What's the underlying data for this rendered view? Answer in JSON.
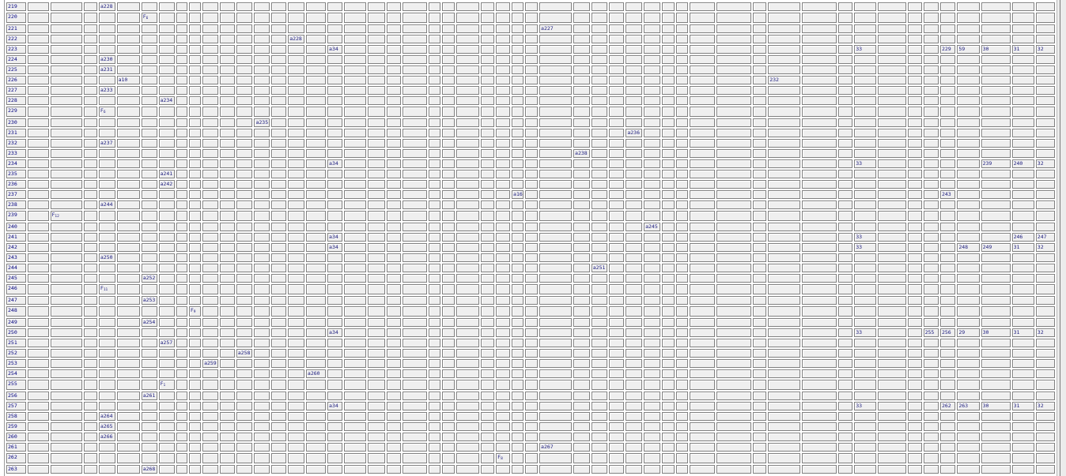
{
  "grid": {
    "columns": 49,
    "rows": [
      {
        "label": "219",
        "cells": {
          "4": "a228"
        }
      },
      {
        "label": "220",
        "cells": {
          "6": {
            "f": "6"
          }
        }
      },
      {
        "label": "221",
        "cells": {
          "29": "a227"
        }
      },
      {
        "label": "222",
        "cells": {
          "15": "a228"
        }
      },
      {
        "label": "223",
        "cells": {
          "17": "a34",
          "43": "33",
          "47": "229",
          "48": "59",
          "49": "30",
          "50": "31",
          "51": "32"
        }
      },
      {
        "label": "224",
        "cells": {
          "4": "a230"
        }
      },
      {
        "label": "225",
        "cells": {
          "4": "a231"
        }
      },
      {
        "label": "226",
        "cells": {
          "5": "a10",
          "40": "232"
        }
      },
      {
        "label": "227",
        "cells": {
          "4": "a233"
        }
      },
      {
        "label": "228",
        "cells": {
          "7": "a234"
        }
      },
      {
        "label": "229",
        "cells": {
          "4": {
            "f": "6"
          }
        }
      },
      {
        "label": "230",
        "cells": {
          "13": "a235"
        }
      },
      {
        "label": "231",
        "cells": {
          "33": "a236"
        }
      },
      {
        "label": "232",
        "cells": {
          "4": "a237"
        }
      },
      {
        "label": "233",
        "cells": {
          "30": "a238"
        }
      },
      {
        "label": "234",
        "cells": {
          "17": "a34",
          "43": "33",
          "49": "239",
          "50": "240",
          "51": "32"
        }
      },
      {
        "label": "235",
        "cells": {
          "7": "a241"
        }
      },
      {
        "label": "236",
        "cells": {
          "7": "a242"
        }
      },
      {
        "label": "237",
        "cells": {
          "27": "a16",
          "47": "243"
        }
      },
      {
        "label": "238",
        "cells": {
          "4": "a244"
        }
      },
      {
        "label": "239",
        "cells": {
          "2": {
            "f": "12"
          }
        }
      },
      {
        "label": "240",
        "cells": {
          "34": "a245"
        }
      },
      {
        "label": "241",
        "cells": {
          "17": "a34",
          "43": "33",
          "50": "246",
          "51": "247"
        }
      },
      {
        "label": "242",
        "cells": {
          "17": "a34",
          "43": "33",
          "48": "248",
          "49": "249",
          "50": "31",
          "51": "32"
        }
      },
      {
        "label": "243",
        "cells": {
          "4": "a250"
        }
      },
      {
        "label": "244",
        "cells": {
          "31": "a251"
        }
      },
      {
        "label": "245",
        "cells": {
          "6": "a252"
        }
      },
      {
        "label": "246",
        "cells": {
          "4": {
            "f": "11"
          }
        }
      },
      {
        "label": "247",
        "cells": {
          "6": "a253"
        }
      },
      {
        "label": "248",
        "cells": {
          "9": {
            "f": "9"
          }
        }
      },
      {
        "label": "249",
        "cells": {
          "6": "a254"
        }
      },
      {
        "label": "250",
        "cells": {
          "17": "a34",
          "43": "33",
          "46": "255",
          "47": "256",
          "48": "29",
          "49": "30",
          "50": "31",
          "51": "32"
        }
      },
      {
        "label": "251",
        "cells": {
          "7": "a257"
        }
      },
      {
        "label": "252",
        "cells": {
          "12": "a258"
        }
      },
      {
        "label": "253",
        "cells": {
          "10": "a259"
        }
      },
      {
        "label": "254",
        "cells": {
          "16": "a260"
        }
      },
      {
        "label": "255",
        "cells": {
          "7": {
            "f": "1"
          }
        }
      },
      {
        "label": "256",
        "cells": {
          "6": "a261"
        }
      },
      {
        "label": "257",
        "cells": {
          "17": "a34",
          "43": "33",
          "47": "262",
          "48": "263",
          "49": "30",
          "50": "31",
          "51": "32"
        }
      },
      {
        "label": "258",
        "cells": {
          "4": "a264"
        }
      },
      {
        "label": "259",
        "cells": {
          "4": "a265"
        }
      },
      {
        "label": "260",
        "cells": {
          "4": "a266"
        }
      },
      {
        "label": "261",
        "cells": {
          "29": "a267"
        }
      },
      {
        "label": "262",
        "cells": {
          "26": {
            "f": "8"
          }
        }
      },
      {
        "label": "263",
        "cells": {
          "6": "a268"
        }
      }
    ]
  }
}
